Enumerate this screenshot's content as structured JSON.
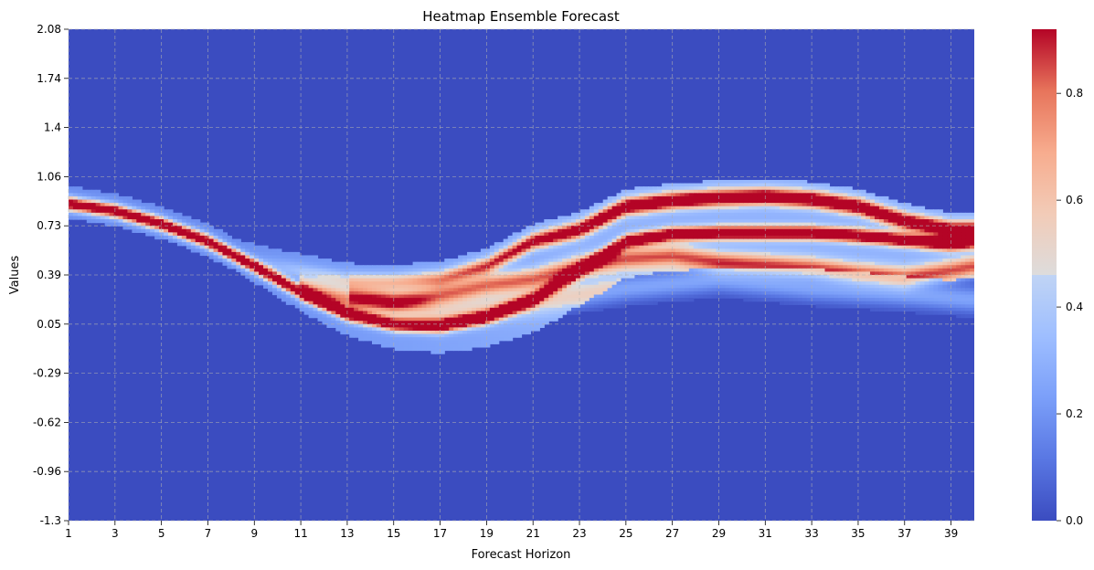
{
  "chart_data": {
    "type": "heatmap",
    "title": "Heatmap Ensemble Forecast",
    "xlabel": "Forecast Horizon",
    "ylabel": "Values",
    "x_tick_labels": [
      "1",
      "3",
      "5",
      "7",
      "9",
      "11",
      "13",
      "15",
      "17",
      "19",
      "21",
      "23",
      "25",
      "27",
      "29",
      "31",
      "33",
      "35",
      "37",
      "39"
    ],
    "y_tick_labels": [
      "2.08",
      "1.74",
      "1.4",
      "1.06",
      "0.73",
      "0.39",
      "0.05",
      "-0.29",
      "-0.62",
      "-0.96",
      "-1.3"
    ],
    "x_range": [
      1,
      40
    ],
    "ylim": [
      -1.3,
      2.08
    ],
    "colorbar": {
      "ticks": [
        "0.0",
        "0.2",
        "0.4",
        "0.6",
        "0.8"
      ],
      "range": [
        0,
        0.92
      ],
      "colormap": "coolwarm"
    },
    "grid": true,
    "bands": [
      {
        "name": "lower",
        "points": [
          [
            1,
            0.88
          ],
          [
            3,
            0.83
          ],
          [
            5,
            0.74
          ],
          [
            7,
            0.62
          ],
          [
            9,
            0.45
          ],
          [
            11,
            0.27
          ],
          [
            13,
            0.12
          ],
          [
            15,
            0.05
          ],
          [
            17,
            0.04
          ],
          [
            19,
            0.1
          ],
          [
            21,
            0.22
          ],
          [
            23,
            0.42
          ],
          [
            25,
            0.62
          ],
          [
            27,
            0.67
          ],
          [
            29,
            0.68
          ],
          [
            31,
            0.68
          ],
          [
            33,
            0.68
          ],
          [
            35,
            0.66
          ],
          [
            37,
            0.63
          ],
          [
            39,
            0.6
          ],
          [
            40,
            0.62
          ]
        ]
      },
      {
        "name": "upper",
        "points": [
          [
            1,
            0.88
          ],
          [
            9,
            0.48
          ],
          [
            13,
            0.35
          ],
          [
            15,
            0.34
          ],
          [
            17,
            0.36
          ],
          [
            19,
            0.45
          ],
          [
            21,
            0.62
          ],
          [
            23,
            0.7
          ],
          [
            25,
            0.86
          ],
          [
            27,
            0.9
          ],
          [
            29,
            0.92
          ],
          [
            31,
            0.93
          ],
          [
            33,
            0.91
          ],
          [
            35,
            0.86
          ],
          [
            37,
            0.76
          ],
          [
            39,
            0.7
          ],
          [
            40,
            0.7
          ]
        ]
      },
      {
        "name": "middle",
        "points": [
          [
            11,
            0.3
          ],
          [
            13,
            0.22
          ],
          [
            15,
            0.2
          ],
          [
            17,
            0.25
          ],
          [
            19,
            0.32
          ],
          [
            21,
            0.36
          ],
          [
            23,
            0.45
          ],
          [
            25,
            0.5
          ],
          [
            27,
            0.52
          ],
          [
            29,
            0.48
          ],
          [
            31,
            0.46
          ],
          [
            33,
            0.44
          ],
          [
            35,
            0.4
          ],
          [
            37,
            0.37
          ],
          [
            39,
            0.42
          ],
          [
            40,
            0.45
          ]
        ]
      },
      {
        "name": "faint",
        "points": [
          [
            13,
            0.28
          ],
          [
            17,
            0.12
          ],
          [
            21,
            0.2
          ],
          [
            25,
            0.3
          ],
          [
            29,
            0.36
          ],
          [
            33,
            0.3
          ],
          [
            37,
            0.26
          ],
          [
            40,
            0.22
          ]
        ]
      }
    ]
  }
}
